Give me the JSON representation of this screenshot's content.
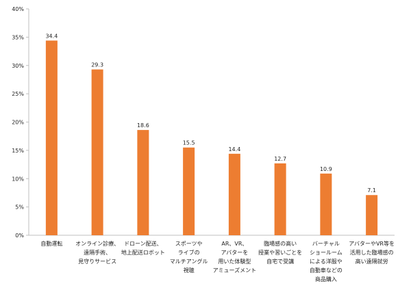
{
  "chart_data": {
    "type": "bar",
    "categories": [
      [
        "自動運転"
      ],
      [
        "オンライン診療、",
        "遠隔手術、",
        "見守りサービス"
      ],
      [
        "ドローン配送、",
        "地上配送ロボット"
      ],
      [
        "スポーツや",
        "ライブの",
        "マルチアングル",
        "視聴"
      ],
      [
        "AR、VR、",
        "アバターを",
        "用いた体験型",
        "アミューズメント"
      ],
      [
        "臨場感の高い",
        "授業や習いごとを",
        "自宅で受講"
      ],
      [
        "バーチャル",
        "ショールーム",
        "による洋服や",
        "自動車などの",
        "商品購入"
      ],
      [
        "アバターやVR等を",
        "活用した臨場感の",
        "高い遠隔就労"
      ]
    ],
    "values": [
      34.4,
      29.3,
      18.6,
      15.5,
      14.4,
      12.7,
      10.9,
      7.1
    ],
    "data_labels": [
      "34.4",
      "29.3",
      "18.6",
      "15.5",
      "14.4",
      "12.7",
      "10.9",
      "7.1"
    ],
    "ylim": [
      0,
      40
    ],
    "yticks": [
      0,
      5,
      10,
      15,
      20,
      25,
      30,
      35,
      40
    ],
    "ytick_labels": [
      "0%",
      "5%",
      "10%",
      "15%",
      "20%",
      "25%",
      "30%",
      "35%",
      "40%"
    ],
    "bar_color": "#ED7D31",
    "axis_color": "#bfbfbf",
    "grid": false,
    "title": "",
    "xlabel": "",
    "ylabel": ""
  }
}
